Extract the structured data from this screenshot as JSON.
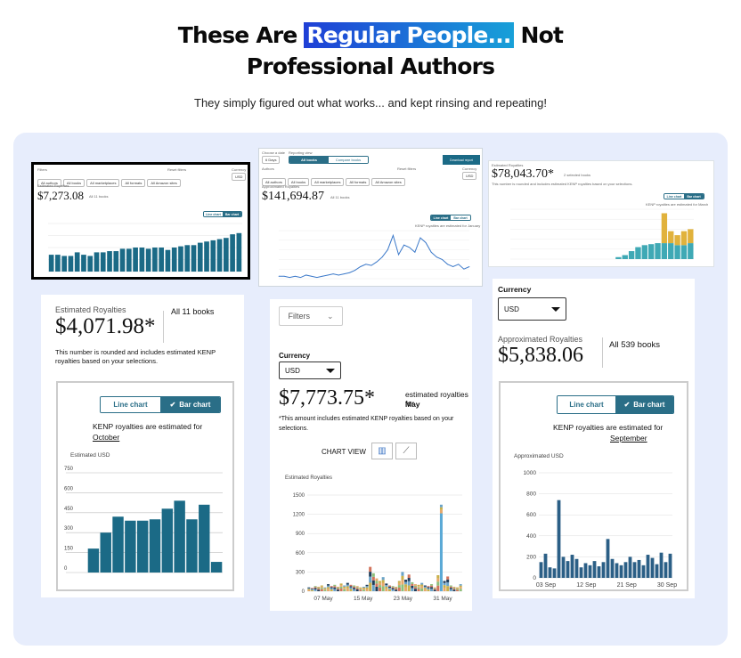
{
  "headline": {
    "part1": "These Are ",
    "highlight": "Regular People...",
    "part2": " Not",
    "line2": "Professional Authors"
  },
  "subheadline": "They simply figured out what works... and kept rinsing and repeating!",
  "colors": {
    "panel": "#e7edfc",
    "teal": "#1b6a86",
    "light_teal": "#3fa9b5",
    "gold": "#e1b23c",
    "accent_blue": "#1f3fd6"
  },
  "card1": {
    "filters_label": "Filters",
    "reset_label": "Reset filters",
    "currency_label": "Currency",
    "filters": [
      "All authors",
      "All books",
      "All marketplaces",
      "All formats",
      "All Amazon sites"
    ],
    "currency": "USD",
    "caption": "Estimated Royalties",
    "amount": "$7,273.08",
    "books": "All 11 books",
    "toggle": [
      "Line chart",
      "Bar chart"
    ],
    "chart_data": {
      "type": "bar",
      "values": [
        14,
        14,
        13,
        13,
        16,
        14,
        13,
        16,
        16,
        17,
        17,
        19,
        19,
        20,
        20,
        19,
        20,
        20,
        18,
        20,
        21,
        22,
        22,
        24,
        25,
        26,
        27,
        28,
        31,
        32
      ],
      "ylim": [
        0,
        40
      ]
    }
  },
  "card2": {
    "date_label": "Choose a date",
    "date_value": "6 Days",
    "tab_label": "Reporting view",
    "tabs": [
      "All books",
      "Compare books"
    ],
    "download": "Download report",
    "authors_label": "Authors",
    "reset_label": "Reset filters",
    "currency_label": "Currency",
    "filters": [
      "All authors",
      "All books",
      "All marketplaces",
      "All formats",
      "All Amazon sites"
    ],
    "currency": "USD",
    "caption": "Approximated Royalties",
    "amount": "$141,694.87",
    "books": "All 11 books",
    "toggle": [
      "Line chart",
      "Bar chart"
    ],
    "note": "KENP royalties are estimated for January",
    "chart_data": {
      "type": "line",
      "values": [
        2,
        2,
        1,
        2,
        1,
        3,
        2,
        1,
        2,
        3,
        4,
        3,
        4,
        5,
        7,
        10,
        12,
        11,
        14,
        18,
        24,
        36,
        20,
        28,
        26,
        22,
        34,
        30,
        22,
        18,
        16,
        12,
        10,
        12,
        8,
        10
      ],
      "ylim": [
        0,
        40
      ]
    }
  },
  "card3": {
    "caption": "Estimated Royalties",
    "amount": "$78,043.70*",
    "books": "2 selected books",
    "note_top": "This number is rounded and includes estimated KENP royalties based on your selections.",
    "toggle": [
      "Line chart",
      "Bar chart"
    ],
    "note": "KENP royalties are estimated for March",
    "chart_data": {
      "type": "bar",
      "series": [
        {
          "name": "",
          "values": [
            0,
            0,
            0,
            0,
            0,
            0,
            0,
            0,
            0,
            0,
            0,
            0,
            0,
            0,
            0,
            0,
            2,
            4,
            8,
            12,
            14,
            15,
            16,
            16,
            16,
            14,
            14,
            16
          ]
        },
        {
          "name": "",
          "values": [
            0,
            0,
            0,
            0,
            0,
            0,
            0,
            0,
            0,
            0,
            0,
            0,
            0,
            0,
            0,
            0,
            0,
            0,
            0,
            0,
            0,
            0,
            0,
            30,
            12,
            10,
            14,
            14
          ]
        }
      ],
      "ylim": [
        0,
        50
      ]
    }
  },
  "card4": {
    "caption": "Estimated Royalties",
    "amount": "$4,071.98*",
    "books": "All 11 books",
    "note": "This number is rounded and includes estimated KENP royalties based on your selections.",
    "toggle": [
      "Line chart",
      "Bar chart"
    ],
    "kenp": "KENP royalties are estimated for",
    "month": "October",
    "ylabel": "Estimated USD",
    "chart_data": {
      "type": "bar",
      "values": [
        180,
        300,
        420,
        390,
        390,
        400,
        480,
        540,
        400,
        510,
        80
      ],
      "yticks": [
        0,
        150,
        300,
        450,
        600,
        750
      ],
      "ylim": [
        0,
        750
      ]
    }
  },
  "card5": {
    "filters_button": "Filters",
    "currency_label": "Currency",
    "currency": "USD",
    "amount": "$7,773.75*",
    "estimated": "estimated royalties for",
    "month": "May",
    "note": "*This amount includes estimated KENP royalties based on your selections.",
    "chart_view": "CHART VIEW",
    "ylabel": "Estimated Royalties",
    "chart_data": {
      "type": "bar",
      "yticks": [
        0,
        300,
        600,
        900,
        1200,
        1500
      ],
      "xticks": [
        "07 May",
        "15 May",
        "23 May",
        "31 May"
      ],
      "ylim": [
        0,
        1500
      ],
      "values": [
        60,
        50,
        80,
        70,
        90,
        60,
        110,
        80,
        100,
        70,
        120,
        90,
        130,
        100,
        90,
        80,
        60,
        70,
        100,
        380,
        280,
        200,
        160,
        220,
        120,
        90,
        80,
        70,
        160,
        300,
        180,
        260,
        140,
        110,
        100,
        130,
        90,
        80,
        110,
        60,
        250,
        1350,
        160,
        230,
        90,
        70,
        60,
        110
      ]
    }
  },
  "card6": {
    "currency_label": "Currency",
    "currency": "USD",
    "caption": "Approximated Royalties",
    "amount": "$5,838.06",
    "books": "All 539 books",
    "toggle": [
      "Line chart",
      "Bar chart"
    ],
    "kenp": "KENP royalties are estimated for",
    "month": "September",
    "ylabel": "Approximated USD",
    "chart_data": {
      "type": "bar",
      "yticks": [
        0,
        200,
        400,
        600,
        800,
        1000
      ],
      "xticks": [
        "03 Sep",
        "12 Sep",
        "21 Sep",
        "30 Sep"
      ],
      "ylim": [
        0,
        1000
      ],
      "values": [
        150,
        230,
        100,
        90,
        740,
        200,
        160,
        220,
        180,
        100,
        140,
        120,
        160,
        110,
        150,
        370,
        180,
        140,
        120,
        150,
        200,
        150,
        170,
        120,
        220,
        190,
        130,
        240,
        150,
        230
      ]
    }
  }
}
